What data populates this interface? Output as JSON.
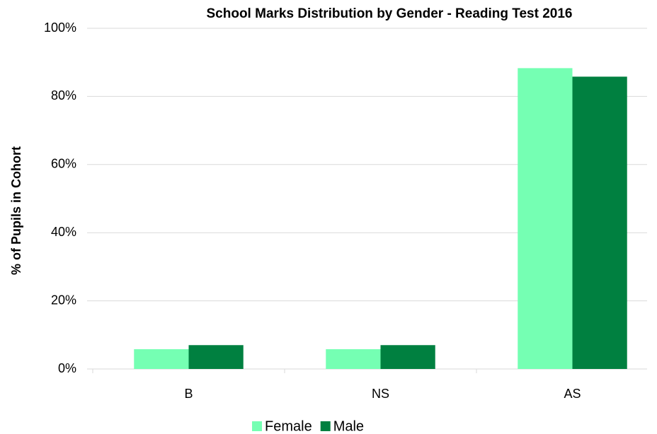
{
  "chart_data": {
    "type": "bar",
    "title": "School Marks Distribution by Gender - Reading Test 2016",
    "y_label": "% of Pupils in Cohort",
    "categories": [
      "B",
      "NS",
      "AS"
    ],
    "series": [
      {
        "name": "Female",
        "color": "#75ffb3",
        "values": [
          5.8,
          5.8,
          88.3
        ]
      },
      {
        "name": "Male",
        "color": "#008040",
        "values": [
          7.0,
          7.0,
          85.8
        ]
      }
    ],
    "ylim": [
      0,
      100
    ],
    "yticks": [
      {
        "value": 0,
        "label": "0%"
      },
      {
        "value": 20,
        "label": "20%"
      },
      {
        "value": 40,
        "label": "40%"
      },
      {
        "value": 60,
        "label": "60%"
      },
      {
        "value": 80,
        "label": "80%"
      },
      {
        "value": 100,
        "label": "100%"
      }
    ],
    "grid": true,
    "legend": "bottom"
  }
}
